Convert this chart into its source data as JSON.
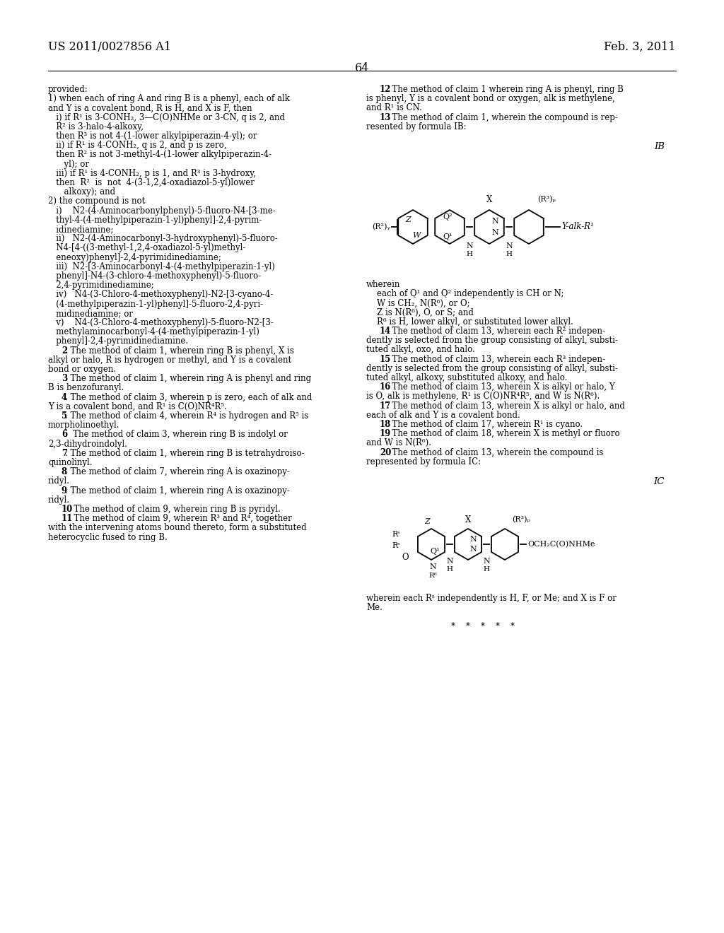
{
  "header_left": "US 2011/0027856 A1",
  "header_right": "Feb. 3, 2011",
  "page_number": "64",
  "left_col_lines": [
    "provided:",
    "1) when each of ring A and ring B is a phenyl, each of alk",
    "and Y is a covalent bond, R is H, and X is F, then",
    "   i) if R¹ is 3-CONH₂, 3—C(O)NHMe or 3-CN, q is 2, and",
    "   R² is 3-halo-4-alkoxy,",
    "   then R³ is not 4-(1-lower alkylpiperazin-4-yl); or",
    "   ii) if R¹ is 4-CONH₂, q is 2, and p is zero,",
    "   then R² is not 3-methyl-4-(1-lower alkylpiperazin-4-",
    "      yl); or",
    "   iii) if R¹ is 4-CONH₂, p is 1, and R³ is 3-hydroxy,",
    "   then  R²  is  not  4-(3-1,2,4-oxadiazol-5-yl)lower",
    "      alkoxy); and",
    "2) the compound is not",
    "   i)    N2-(4-Aminocarbonylphenyl)-5-fluoro-N4-[3-me-",
    "   thyl-4-(4-methylpiperazin-1-yl)phenyl]-2,4-pyrim-",
    "   idinediamine;",
    "   ii)   N2-(4-Aminocarbonyl-3-hydroxyphenyl)-5-fluoro-",
    "   N4-[4-((3-methyl-1,2,4-oxadiazol-5-yl)methyl-",
    "   eneoxy)phenyl]-2,4-pyrimidinediamine;",
    "   iii)  N2-[3-Aminocarbonyl-4-(4-methylpiperazin-1-yl)",
    "   phenyl]-N4-(3-chloro-4-methoxyphenyl)-5-fluoro-",
    "   2,4-pyrimidinediamine;",
    "   iv)   N4-(3-Chloro-4-methoxyphenyl)-N2-[3-cyano-4-",
    "   (4-methylpiperazin-1-yl)phenyl]-5-fluoro-2,4-pyri-",
    "   midinediamine; or",
    "   v)    N4-(3-Chloro-4-methoxyphenyl)-5-fluoro-N2-[3-",
    "   methylaminocarbonyl-4-(4-methylpiperazin-1-yl)",
    "   phenyl]-2,4-pyrimidinediamine.",
    "    ·2. The method of claim ·1, wherein ring B is phenyl, X is",
    "alkyl or halo, R is hydrogen or methyl, and Y is a covalent",
    "bond or oxygen.",
    "    ·3. The method of claim ·1, wherein ring A is phenyl and ring",
    "B is benzofuranyl.",
    "    ·4. The method of claim ·3, wherein p is zero, each of alk and",
    "Y is a covalent bond, and R¹ is C(O)NR⁴R⁵.",
    "    ·5. The method of claim ·4, wherein R⁴ is hydrogen and R⁵ is",
    "morpholinoethyl.",
    "    ·6.  The method of claim ·3, wherein ring B is indolyl or",
    "2,3-dihydroindolyl.",
    "    ·7. The method of claim ·1, wherein ring B is tetrahydroiso-",
    "quinolinyl.",
    "    ·8. The method of claim ·7, wherein ring A is oxazinopy-",
    "ridyl.",
    "    ·9. The method of claim ·1, wherein ring A is oxazinopy-",
    "ridyl.",
    "    10. The method of claim ·9, wherein ring B is pyridyl.",
    "    11. The method of claim ·9, wherein R³ and R⁴, together",
    "with the intervening atoms bound thereto, form a substituted",
    "heterocyclic fused to ring B."
  ],
  "right_col_lines_top": [
    "    12. The method of claim ·1 wherein ring A is phenyl, ring B",
    "is phenyl, Y is a covalent bond or oxygen, alk is methylene,",
    "and R¹ is CN.",
    "    13. The method of claim ·1, wherein the compound is rep-",
    "resented by formula IB:"
  ],
  "right_col_lines_after_IB": [
    "wherein",
    "    each of Q¹ and Q² independently is CH or N;",
    "    W is CH₂, N(R⁶), or O;",
    "    Z is N(R⁶), O, or S; and",
    "    R⁶ is H, lower alkyl, or substituted lower alkyl.",
    "    ·14. The method of claim ·13, wherein each R² indepen-",
    "dently is selected from the group consisting of alkyl, substi-",
    "tuted alkyl, oxo, and halo.",
    "    ·15. The method of claim ·13, wherein each R³ indepen-",
    "dently is selected from the group consisting of alkyl, substi-",
    "tuted alkyl, alkoxy, substituted alkoxy, and halo.",
    "    ·16. The method of claim ·13, wherein X is alkyl or halo, Y",
    "is O, alk is methylene, R¹ is C(O)NR⁴R⁵, and W is N(R⁶).",
    "    ·17. The method of claim ·13, wherein X is alkyl or halo, and",
    "each of alk and Y is a covalent bond.",
    "    ·18. The method of claim ·17, wherein R¹ is cyano.",
    "    ·19. The method of claim ·18, wherein X is methyl or fluoro",
    "and W is N(R⁶).",
    "    ·20. The method of claim ·13, wherein the compound is",
    "represented by formula IC:"
  ],
  "right_col_lines_after_IC": [
    "wherein each Rˢ independently is H, F, or Me; and X is F or",
    "Me.",
    "",
    "                                *    *    *    *    *"
  ]
}
